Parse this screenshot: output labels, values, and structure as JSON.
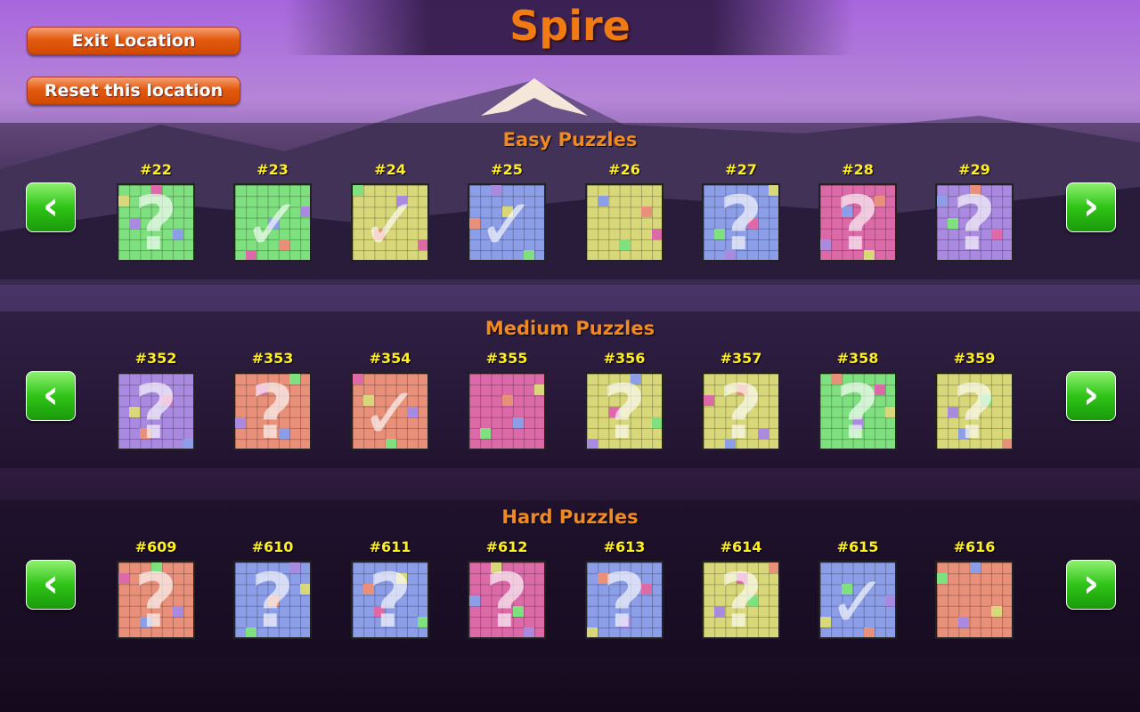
{
  "title": "Spire",
  "buttons": {
    "exit": "Exit Location",
    "reset": "Reset this location"
  },
  "icons": {
    "prev": "chevron-left-icon",
    "next": "chevron-right-icon",
    "unsolved": "question-mark-icon",
    "solved": "checkmark-icon"
  },
  "colors": {
    "green": "#7fe07f",
    "yellow": "#d8d87a",
    "blue": "#8c9ee8",
    "pink": "#dd6aa8",
    "purple": "#a98ae0",
    "salmon": "#e8907a",
    "accent": "#f07a14",
    "label": "#ffee22"
  },
  "sections": [
    {
      "title": "Easy Puzzles",
      "puzzles": [
        {
          "number": "#22",
          "color": "green",
          "status": "unsolved"
        },
        {
          "number": "#23",
          "color": "green",
          "status": "solved"
        },
        {
          "number": "#24",
          "color": "yellow",
          "status": "solved"
        },
        {
          "number": "#25",
          "color": "blue",
          "status": "solved"
        },
        {
          "number": "#26",
          "color": "yellow",
          "status": "in-progress"
        },
        {
          "number": "#27",
          "color": "blue",
          "status": "unsolved"
        },
        {
          "number": "#28",
          "color": "pink",
          "status": "unsolved"
        },
        {
          "number": "#29",
          "color": "purple",
          "status": "unsolved"
        }
      ]
    },
    {
      "title": "Medium Puzzles",
      "puzzles": [
        {
          "number": "#352",
          "color": "purple",
          "status": "unsolved"
        },
        {
          "number": "#353",
          "color": "salmon",
          "status": "unsolved"
        },
        {
          "number": "#354",
          "color": "salmon",
          "status": "solved"
        },
        {
          "number": "#355",
          "color": "pink",
          "status": "in-progress"
        },
        {
          "number": "#356",
          "color": "yellow",
          "status": "unsolved"
        },
        {
          "number": "#357",
          "color": "yellow",
          "status": "unsolved"
        },
        {
          "number": "#358",
          "color": "green",
          "status": "unsolved"
        },
        {
          "number": "#359",
          "color": "yellow",
          "status": "unsolved"
        }
      ]
    },
    {
      "title": "Hard Puzzles",
      "puzzles": [
        {
          "number": "#609",
          "color": "salmon",
          "status": "unsolved"
        },
        {
          "number": "#610",
          "color": "blue",
          "status": "unsolved"
        },
        {
          "number": "#611",
          "color": "blue",
          "status": "unsolved"
        },
        {
          "number": "#612",
          "color": "pink",
          "status": "unsolved"
        },
        {
          "number": "#613",
          "color": "blue",
          "status": "unsolved"
        },
        {
          "number": "#614",
          "color": "yellow",
          "status": "unsolved"
        },
        {
          "number": "#615",
          "color": "blue",
          "status": "solved"
        },
        {
          "number": "#616",
          "color": "salmon",
          "status": "in-progress"
        }
      ]
    }
  ]
}
